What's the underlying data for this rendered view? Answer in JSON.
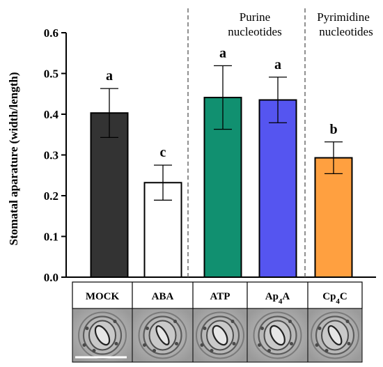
{
  "chart_data": {
    "type": "bar",
    "ylabel": "Stomatal aparature (width/length)",
    "ylim": [
      0,
      0.6
    ],
    "yticks": [
      "0.0",
      "0.1",
      "0.2",
      "0.3",
      "0.4",
      "0.5",
      "0.6"
    ],
    "categories": [
      "MOCK",
      "ABA",
      "ATP",
      "Ap4A",
      "Cp4C"
    ],
    "category_sub": {
      "Ap4A": "4",
      "Cp4C": "4"
    },
    "values": [
      0.403,
      0.232,
      0.441,
      0.435,
      0.293
    ],
    "errors": [
      0.06,
      0.043,
      0.078,
      0.056,
      0.039
    ],
    "significance": [
      "a",
      "c",
      "a",
      "a",
      "b"
    ],
    "colors": [
      "#333333",
      "#ffffff",
      "#119070",
      "#5555f0",
      "#ffa040"
    ],
    "groups": [
      {
        "line1": "Purine",
        "line2": "nucleotides",
        "categories": [
          "ATP",
          "Ap4A"
        ]
      },
      {
        "line1": "Pyrimidine",
        "line2": "nucleotides",
        "categories": [
          "Cp4C"
        ]
      }
    ],
    "grid": false
  }
}
